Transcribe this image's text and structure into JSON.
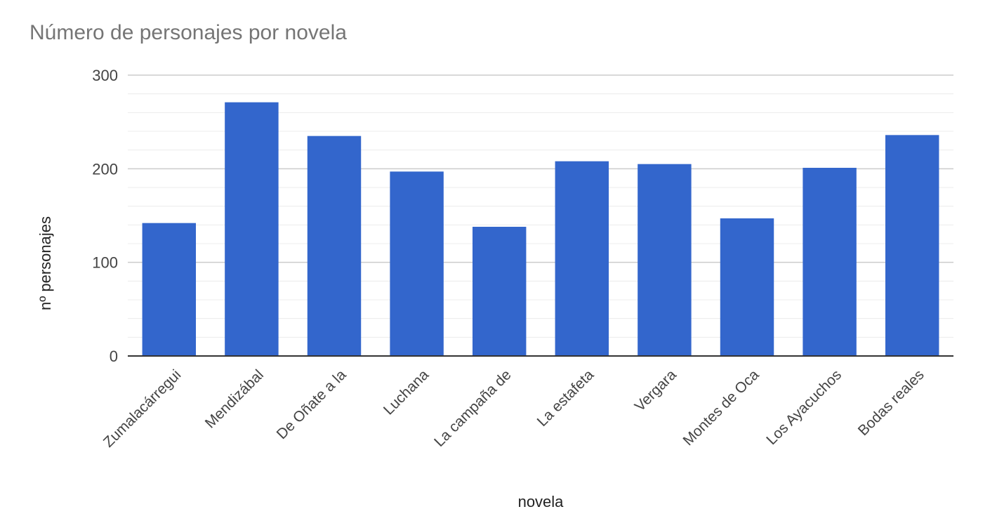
{
  "chart_data": {
    "type": "bar",
    "title": "Número de personajes por novela",
    "xlabel": "novela",
    "ylabel": "nº personajes",
    "categories": [
      "Zumalacárregui",
      "Mendizábal",
      "De Oñate a la",
      "Luchana",
      "La campaña de",
      "La estafeta",
      "Vergara",
      "Montes de Oca",
      "Los Ayacuchos",
      "Bodas reales"
    ],
    "series": [
      {
        "values": [
          142,
          271,
          235,
          197,
          138,
          208,
          205,
          147,
          201,
          236
        ]
      }
    ],
    "ylim": [
      0,
      300
    ],
    "yticks": [
      "0",
      "100",
      "200",
      "300"
    ],
    "grid": true,
    "legend": "none",
    "bar_color": "#3366cc"
  }
}
